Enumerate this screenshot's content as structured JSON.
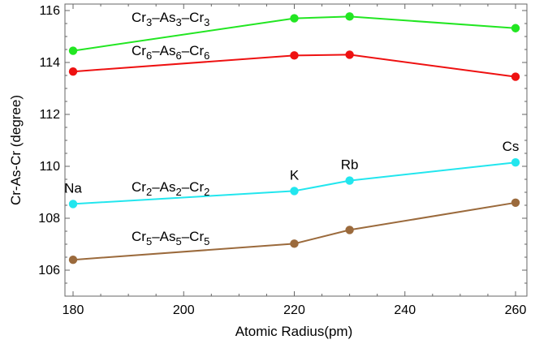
{
  "chart_data": {
    "type": "line",
    "title": "",
    "xlabel": "Atomic Radius(pm)",
    "ylabel": "Cr-As-Cr (degree)",
    "xlim": [
      176,
      262
    ],
    "ylim": [
      105,
      116.2
    ],
    "x": [
      180,
      220,
      230,
      260
    ],
    "xticks": [
      "180",
      "200",
      "220",
      "240",
      "260"
    ],
    "yticks": [
      "106",
      "108",
      "110",
      "112",
      "114",
      "116"
    ],
    "grid": false,
    "point_annotations": [
      "Na",
      "K",
      "Rb",
      "Cs"
    ],
    "series": [
      {
        "name": "Cr3–As3–Cr3",
        "name_parts": {
          "a": "Cr",
          "b": "As",
          "sub": "3"
        },
        "color": "#22e622",
        "values": [
          114.45,
          115.7,
          115.77,
          115.32
        ]
      },
      {
        "name": "Cr6–As6–Cr6",
        "name_parts": {
          "a": "Cr",
          "b": "As",
          "sub": "6"
        },
        "color": "#ee1111",
        "values": [
          113.65,
          114.27,
          114.3,
          113.45
        ]
      },
      {
        "name": "Cr2–As2–Cr2",
        "name_parts": {
          "a": "Cr",
          "b": "As",
          "sub": "2"
        },
        "color": "#22e6ee",
        "values": [
          108.55,
          109.05,
          109.45,
          110.15
        ]
      },
      {
        "name": "Cr5–As5–Cr5",
        "name_parts": {
          "a": "Cr",
          "b": "As",
          "sub": "5"
        },
        "color": "#9b6a3c",
        "values": [
          106.4,
          107.02,
          107.55,
          108.6
        ]
      }
    ]
  }
}
